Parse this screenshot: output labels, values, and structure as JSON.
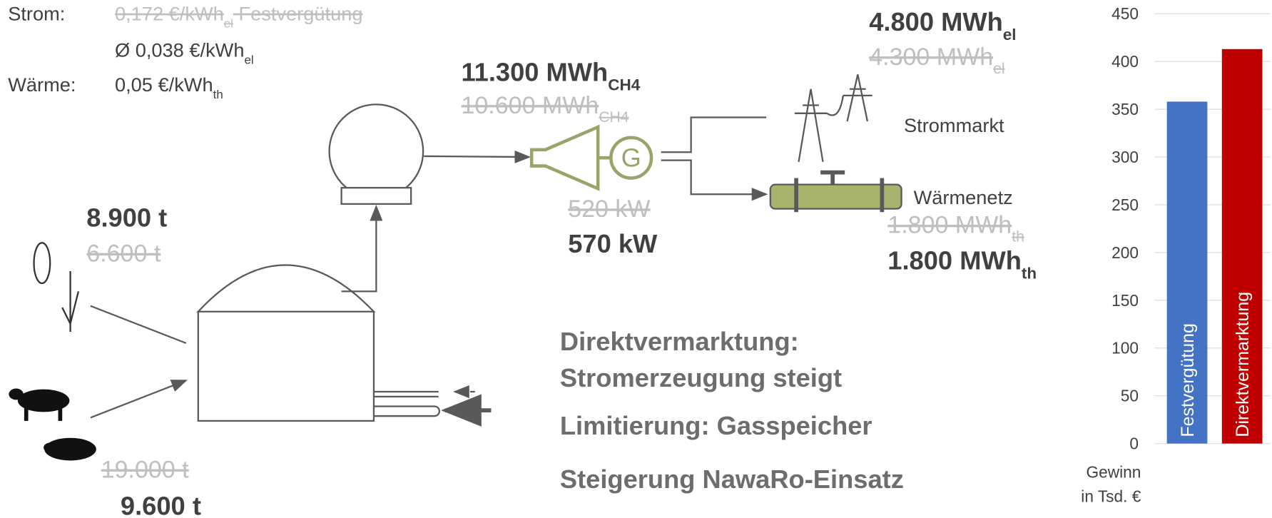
{
  "prices": {
    "strom_label": "Strom:",
    "strom_old": {
      "main": "0,172 €/kWh",
      "sub": "el",
      "rest": " Festvergütung"
    },
    "strom_avg": {
      "main": "Ø 0,038 €/kWh",
      "sub": "el"
    },
    "waerme_label": "Wärme:",
    "waerme": {
      "main": "0,05 €/kWh",
      "sub": "th"
    }
  },
  "gas": {
    "new": {
      "main": "11.300 MWh",
      "sub": "CH4"
    },
    "old": {
      "main": "10.600 MWh",
      "sub": "CH4"
    }
  },
  "power": {
    "old": "520 kW",
    "new": "570 kW"
  },
  "electricity": {
    "new": {
      "main": "4.800 MWh",
      "sub": "el"
    },
    "old": {
      "main": "4.300 MWh",
      "sub": "el"
    },
    "label": "Strommarkt"
  },
  "heat": {
    "label": "Wärmenetz",
    "old": {
      "main": "1.800 MWh",
      "sub": "th"
    },
    "new": {
      "main": "1.800 MWh",
      "sub": "th"
    }
  },
  "crops": {
    "new": "8.900 t",
    "old": "6.600 t"
  },
  "manure": {
    "old": "19.000 t",
    "new": "9.600 t"
  },
  "notes": [
    "Direktvermarktung:",
    "Stromerzeugung steigt",
    "Limitierung: Gasspeicher",
    "Steigerung NawaRo-Einsatz"
  ],
  "chart_data": {
    "type": "bar",
    "categories": [
      "Festvergütung",
      "Direktvermarktung"
    ],
    "values": [
      358,
      413
    ],
    "colors": [
      "#4472c4",
      "#c00000"
    ],
    "ylim": [
      0,
      450
    ],
    "yticks": [
      0,
      50,
      100,
      150,
      200,
      250,
      300,
      350,
      400,
      450
    ],
    "ylabel": [
      "Gewinn",
      "in Tsd. €"
    ],
    "grid": true
  }
}
